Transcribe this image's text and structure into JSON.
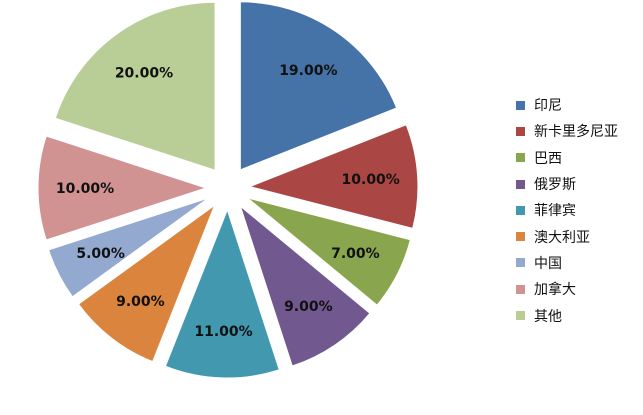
{
  "chart_data": {
    "type": "pie",
    "exploded": true,
    "categories": [
      "印尼",
      "新卡里多尼亚",
      "巴西",
      "俄罗斯",
      "菲律宾",
      "澳大利亚",
      "中国",
      "加拿大",
      "其他"
    ],
    "values": [
      19.0,
      10.0,
      7.0,
      9.0,
      11.0,
      9.0,
      5.0,
      10.0,
      20.0
    ],
    "value_labels": [
      "19.00%",
      "10.00%",
      "7.00%",
      "9.00%",
      "11.00%",
      "9.00%",
      "5.00%",
      "10.00%",
      "20.00%"
    ],
    "colors": [
      "#4572A7",
      "#AA4643",
      "#89A54E",
      "#71588F",
      "#4198AF",
      "#DB843D",
      "#93A9CF",
      "#D19392",
      "#B9CD96"
    ],
    "legend_position": "right"
  }
}
